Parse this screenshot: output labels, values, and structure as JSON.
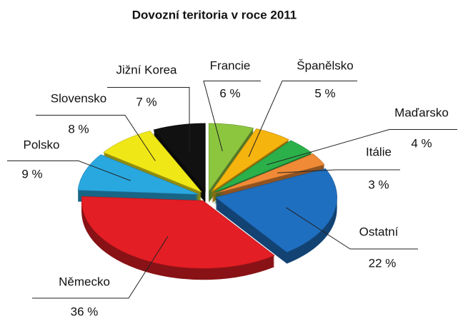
{
  "chart_data": {
    "type": "pie",
    "title": "Dovozní teritoria v roce 2011",
    "categories": [
      "Francie",
      "Španělsko",
      "Maďarsko",
      "Itálie",
      "Ostatní",
      "Německo",
      "Polsko",
      "Slovensko",
      "Jižní Korea"
    ],
    "values": [
      6,
      5,
      4,
      3,
      22,
      36,
      9,
      8,
      7
    ],
    "value_labels": [
      "6 %",
      "5 %",
      "4 %",
      "3 %",
      "22 %",
      "36 %",
      "9 %",
      "8 %",
      "7 %"
    ],
    "colors": [
      "#8cc63f",
      "#f6b40e",
      "#2bb04a",
      "#f08a36",
      "#1f6fc0",
      "#e31e24",
      "#29a8e0",
      "#f0e816",
      "#111111"
    ]
  }
}
